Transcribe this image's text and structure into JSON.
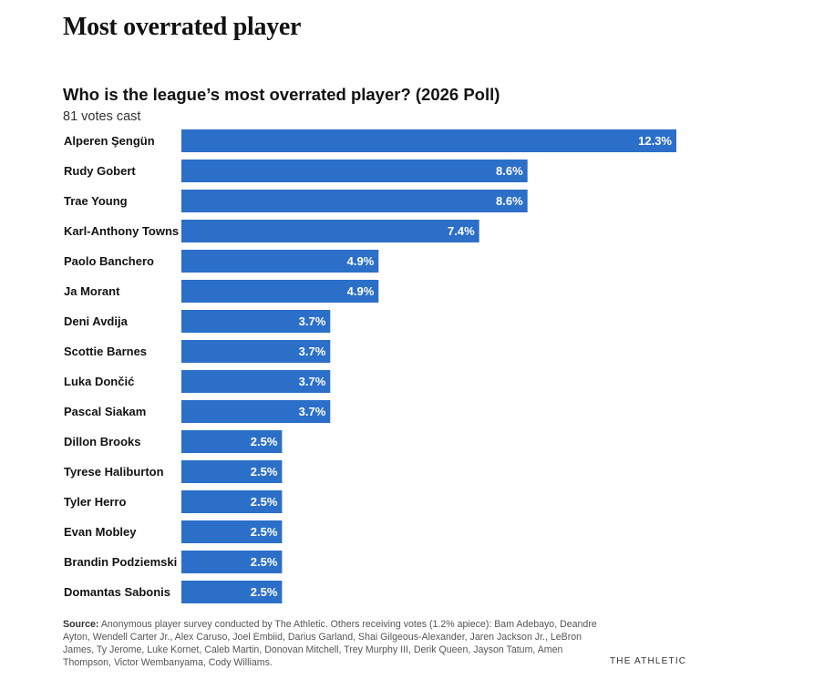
{
  "page": {
    "heading": "Most overrated player"
  },
  "chart_data": {
    "type": "bar",
    "orientation": "horizontal",
    "title": "Who is the league’s most overrated player? (2026 Poll)",
    "subtitle": "81 votes cast",
    "categories": [
      "Alperen Şengün",
      "Rudy Gobert",
      "Trae Young",
      "Karl-Anthony Towns",
      "Paolo Banchero",
      "Ja Morant",
      "Deni Avdija",
      "Scottie Barnes",
      "Luka Dončić",
      "Pascal Siakam",
      "Dillon Brooks",
      "Tyrese Haliburton",
      "Tyler Herro",
      "Evan Mobley",
      "Brandin Podziemski",
      "Domantas Sabonis"
    ],
    "values": [
      12.3,
      8.6,
      8.6,
      7.4,
      4.9,
      4.9,
      3.7,
      3.7,
      3.7,
      3.7,
      2.5,
      2.5,
      2.5,
      2.5,
      2.5,
      2.5
    ],
    "labels": [
      "12.3%",
      "8.6%",
      "8.6%",
      "7.4%",
      "4.9%",
      "4.9%",
      "3.7%",
      "3.7%",
      "3.7%",
      "3.7%",
      "2.5%",
      "2.5%",
      "2.5%",
      "2.5%",
      "2.5%",
      "2.5%"
    ],
    "bar_color": "#2b6fc9",
    "label_color": "#ffffff",
    "value_axis_max": 12.3,
    "grid": false,
    "legend": "none"
  },
  "footer": {
    "source_label": "Source:",
    "source_text": "Anonymous player survey conducted by The Athletic. Others receiving votes (1.2% apiece): Bam Adebayo, Deandre Ayton, Wendell Carter Jr., Alex Caruso, Joel Embiid, Darius Garland, Shai Gilgeous-Alexander, Jaren Jackson Jr., LeBron James, Ty Jerome, Luke Kornet, Caleb Martin, Donovan Mitchell, Trey Murphy III, Derik Queen, Jayson Tatum, Amen Thompson, Victor Wembanyama, Cody Williams.",
    "brand": "THE ATHLETIC"
  }
}
